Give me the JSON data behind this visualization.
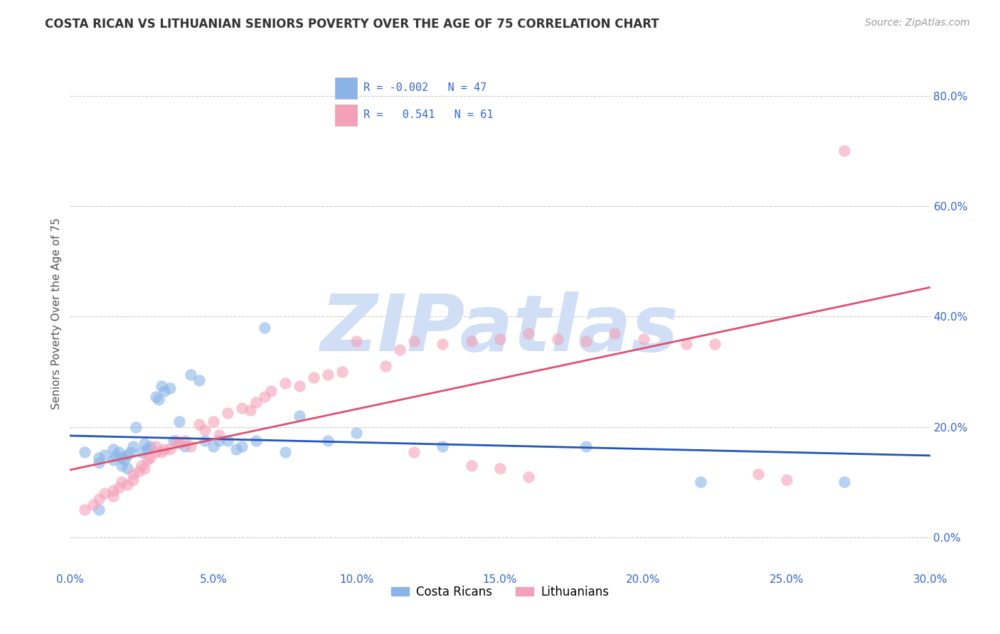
{
  "title": "COSTA RICAN VS LITHUANIAN SENIORS POVERTY OVER THE AGE OF 75 CORRELATION CHART",
  "source": "Source: ZipAtlas.com",
  "ylabel": "Seniors Poverty Over the Age of 75",
  "xlim": [
    0.0,
    0.3
  ],
  "ylim": [
    -0.06,
    0.87
  ],
  "xticks": [
    0.0,
    0.05,
    0.1,
    0.15,
    0.2,
    0.25,
    0.3
  ],
  "yticks_right": [
    0.0,
    0.2,
    0.4,
    0.6,
    0.8
  ],
  "background_color": "#ffffff",
  "watermark": "ZIPatlas",
  "watermark_color": "#d0dff5",
  "costa_rican_color": "#8ab4e8",
  "lithuanian_color": "#f4a0b8",
  "costa_rican_line_color": "#2255bb",
  "lithuanian_line_color": "#e05070",
  "legend_R_costa": "-0.002",
  "legend_N_costa": "47",
  "legend_R_lith": "0.541",
  "legend_N_lith": "61",
  "cr_x": [
    0.005,
    0.01,
    0.01,
    0.012,
    0.015,
    0.015,
    0.016,
    0.017,
    0.018,
    0.018,
    0.019,
    0.02,
    0.02,
    0.021,
    0.022,
    0.023,
    0.025,
    0.026,
    0.027,
    0.028,
    0.03,
    0.031,
    0.032,
    0.033,
    0.035,
    0.036,
    0.038,
    0.04,
    0.042,
    0.045,
    0.047,
    0.05,
    0.052,
    0.055,
    0.058,
    0.06,
    0.065,
    0.068,
    0.075,
    0.08,
    0.09,
    0.1,
    0.13,
    0.18,
    0.22,
    0.27,
    0.01
  ],
  "cr_y": [
    0.155,
    0.145,
    0.135,
    0.15,
    0.16,
    0.14,
    0.148,
    0.155,
    0.13,
    0.145,
    0.14,
    0.15,
    0.125,
    0.155,
    0.165,
    0.2,
    0.155,
    0.17,
    0.16,
    0.165,
    0.255,
    0.25,
    0.275,
    0.265,
    0.27,
    0.175,
    0.21,
    0.165,
    0.295,
    0.285,
    0.175,
    0.165,
    0.175,
    0.175,
    0.16,
    0.165,
    0.175,
    0.38,
    0.155,
    0.22,
    0.175,
    0.19,
    0.165,
    0.165,
    0.1,
    0.1,
    0.05
  ],
  "lith_x": [
    0.005,
    0.008,
    0.01,
    0.012,
    0.015,
    0.015,
    0.017,
    0.018,
    0.02,
    0.022,
    0.022,
    0.024,
    0.025,
    0.026,
    0.027,
    0.028,
    0.03,
    0.03,
    0.032,
    0.033,
    0.035,
    0.037,
    0.038,
    0.04,
    0.042,
    0.045,
    0.047,
    0.05,
    0.052,
    0.055,
    0.06,
    0.063,
    0.065,
    0.068,
    0.07,
    0.075,
    0.08,
    0.085,
    0.09,
    0.095,
    0.1,
    0.11,
    0.115,
    0.12,
    0.13,
    0.14,
    0.15,
    0.16,
    0.17,
    0.18,
    0.19,
    0.2,
    0.215,
    0.225,
    0.24,
    0.25,
    0.27,
    0.12,
    0.14,
    0.15,
    0.16
  ],
  "lith_y": [
    0.05,
    0.06,
    0.07,
    0.08,
    0.085,
    0.075,
    0.09,
    0.1,
    0.095,
    0.105,
    0.115,
    0.12,
    0.13,
    0.125,
    0.14,
    0.145,
    0.155,
    0.165,
    0.155,
    0.16,
    0.16,
    0.175,
    0.17,
    0.175,
    0.165,
    0.205,
    0.195,
    0.21,
    0.185,
    0.225,
    0.235,
    0.23,
    0.245,
    0.255,
    0.265,
    0.28,
    0.275,
    0.29,
    0.295,
    0.3,
    0.355,
    0.31,
    0.34,
    0.355,
    0.35,
    0.355,
    0.36,
    0.37,
    0.36,
    0.355,
    0.37,
    0.36,
    0.35,
    0.35,
    0.115,
    0.105,
    0.7,
    0.155,
    0.13,
    0.125,
    0.11
  ]
}
